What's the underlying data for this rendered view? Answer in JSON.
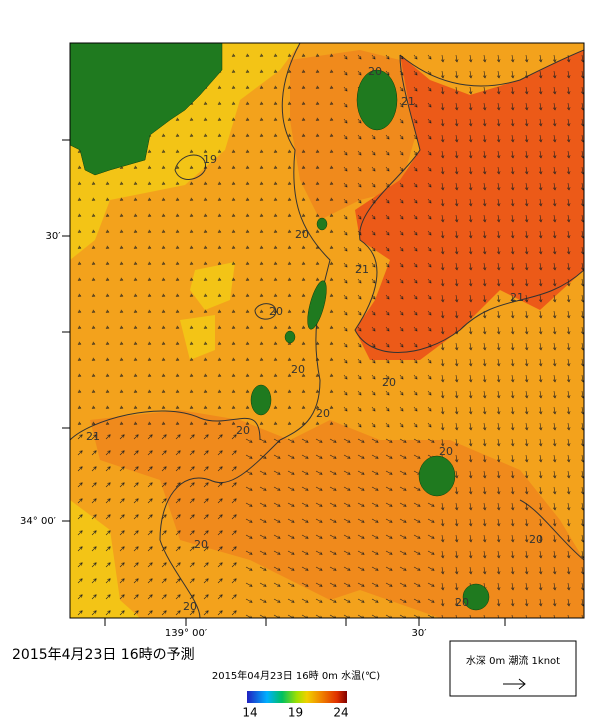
{
  "map": {
    "title": "2015年4月23日  16時の予測",
    "subtitle": "2015年04月23日 16時 0m 水温(℃)",
    "lat_labels": [
      "30′",
      "34° 00′"
    ],
    "lon_labels": [
      "139° 00′",
      "30′"
    ],
    "contour_labels": [
      19,
      20,
      21,
      20,
      20,
      21,
      21,
      20,
      20,
      20,
      20,
      21,
      20,
      20,
      20,
      20,
      20
    ],
    "colorbar": {
      "range": [
        14,
        24
      ],
      "ticks": [
        14,
        19,
        24
      ]
    },
    "legend": "水深 0m  潮流 1knot"
  }
}
